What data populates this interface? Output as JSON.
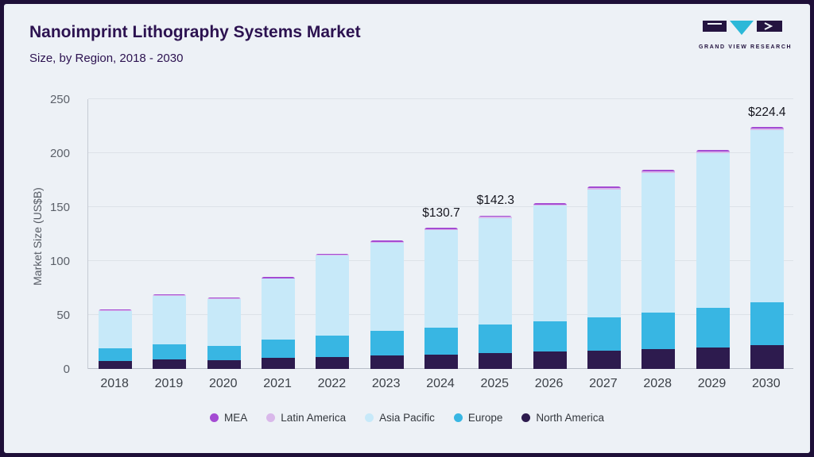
{
  "header": {
    "title": "Nanoimprint Lithography Systems Market",
    "subtitle": "Size, by Region, 2018 - 2030"
  },
  "logo": {
    "brand": "GRAND VIEW RESEARCH",
    "accent_color": "#2bb8d8",
    "dark_color": "#241440"
  },
  "chart_data": {
    "type": "bar",
    "stacked": true,
    "title": "Nanoimprint Lithography Systems Market Size, by Region, 2018 - 2030",
    "xlabel": "",
    "ylabel": "Market Size (US$B)",
    "ylim": [
      0,
      250
    ],
    "yticks": [
      0,
      50,
      100,
      150,
      200,
      250
    ],
    "grid": true,
    "legend_position": "bottom",
    "categories": [
      "2018",
      "2019",
      "2020",
      "2021",
      "2022",
      "2023",
      "2024",
      "2025",
      "2026",
      "2027",
      "2028",
      "2029",
      "2030"
    ],
    "series": [
      {
        "name": "North America",
        "color": "#2d1b4e",
        "values": [
          7,
          9,
          8,
          10,
          11,
          12.5,
          13.5,
          14.5,
          16,
          17,
          18.5,
          20,
          22
        ]
      },
      {
        "name": "Europe",
        "color": "#38b6e3",
        "values": [
          12,
          14,
          13,
          17,
          20,
          23,
          25,
          26.5,
          28,
          31,
          33.5,
          37,
          40
        ]
      },
      {
        "name": "Asia Pacific",
        "color": "#c7e9f9",
        "values": [
          35,
          44.5,
          43.5,
          56.5,
          74,
          81.5,
          90,
          99,
          107.5,
          118.5,
          130,
          143,
          159
        ]
      },
      {
        "name": "Latin America",
        "color": "#d9b8ea",
        "values": [
          0.5,
          0.6,
          0.6,
          0.7,
          0.8,
          0.9,
          1.0,
          1.1,
          1.1,
          1.2,
          1.3,
          1.4,
          1.5
        ]
      },
      {
        "name": "MEA",
        "color": "#a44bd3",
        "values": [
          0.7,
          0.8,
          0.8,
          0.9,
          1.0,
          1.1,
          1.2,
          1.2,
          1.3,
          1.4,
          1.5,
          1.6,
          1.9
        ]
      }
    ],
    "annotations": [
      {
        "category": "2024",
        "label": "$130.7"
      },
      {
        "category": "2025",
        "label": "$142.3"
      },
      {
        "category": "2030",
        "label": "$224.4"
      }
    ],
    "legend": [
      "MEA",
      "Latin America",
      "Asia Pacific",
      "Europe",
      "North America"
    ]
  }
}
